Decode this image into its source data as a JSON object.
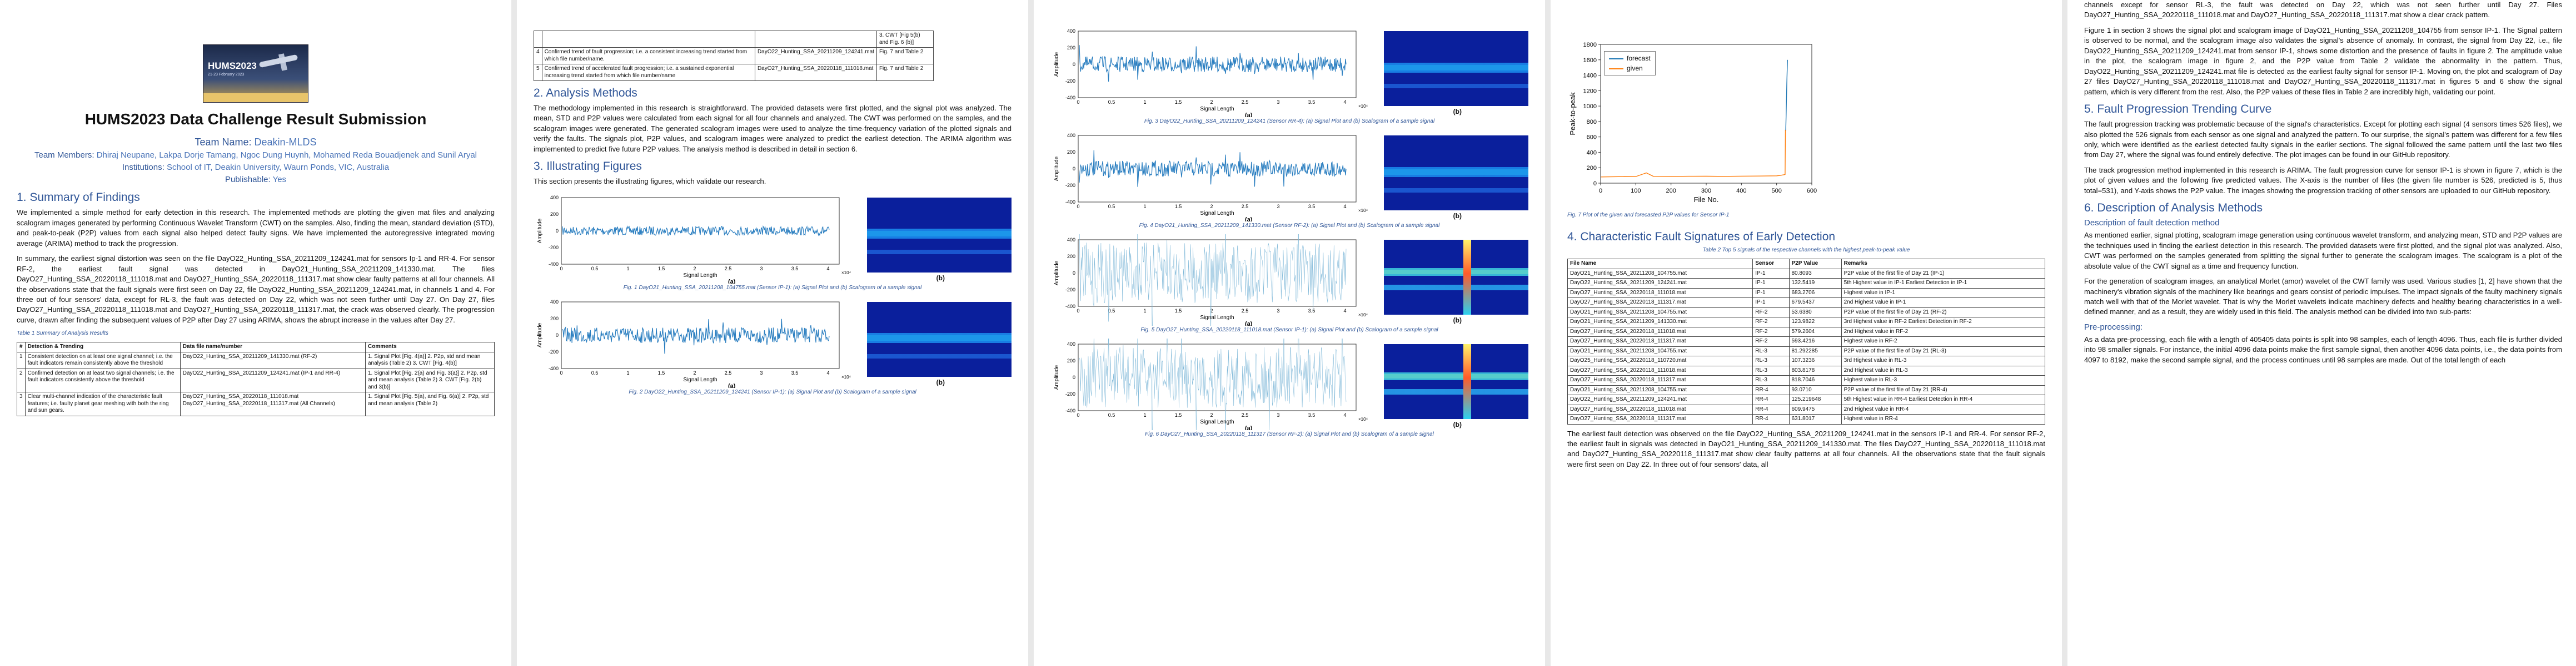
{
  "p1": {
    "logo_title": "HUMS2023",
    "logo_sub": "21-23 February 2023",
    "title": "HUMS2023 Data Challenge Result Submission",
    "team_name_label": "Team Name:",
    "team_name": "Deakin-MLDS",
    "members_label": "Team Members:",
    "members": "Dhiraj Neupane, Lakpa Dorje Tamang, Ngoc Dung Huynh, Mohamed Reda Bouadjenek and Sunil Aryal",
    "inst_label": "Institutions:",
    "inst": "School of IT, Deakin University, Waurn Ponds, VIC, Australia",
    "pub_label": "Publishable:",
    "pub": "Yes",
    "h_summary": "1. Summary of Findings",
    "para1": "We implemented a simple method for early detection in this research. The implemented methods are plotting the given mat files and analyzing scalogram images generated by performing Continuous Wavelet Transform (CWT) on the samples. Also, finding the mean, standard deviation (STD), and peak-to-peak (P2P) values from each signal also helped detect faulty signs. We have implemented the autoregressive integrated moving average (ARIMA) method to track the progression.",
    "para2": "In summary, the earliest signal distortion was seen on the file DayO22_Hunting_SSA_20211209_124241.mat for sensors Ip-1 and RR-4. For sensor RF-2, the earliest fault signal was detected in DayO21_Hunting_SSA_20211209_141330.mat. The files DayO27_Hunting_SSA_20220118_111018.mat and DayO27_Hunting_SSA_20220118_111317.mat show clear faulty patterns at all four channels. All the observations state that the fault signals were first seen on Day 22, file DayO22_Hunting_SSA_20211209_124241.mat, in channels 1 and 4. For three out of four sensors' data, except for RL-3, the fault was detected on Day 22, which was not seen further until Day 27. On Day 27, files DayO27_Hunting_SSA_20220118_111018.mat and DayO27_Hunting_SSA_20220118_111317.mat, the crack was observed clearly. The progression curve, drawn after finding the subsequent values of P2P after Day 27 using ARIMA, shows the abrupt increase in the values after Day 27.",
    "table_caption": "Table 1   Summary of Analysis Results",
    "t1_headers": [
      "#",
      "Detection & Trending",
      "Data file name/number",
      "Comments"
    ],
    "t1_rows": [
      [
        "1",
        "Consistent detection on at least one signal channel; i.e. the fault indicators remain consistently above the threshold",
        "DayO22_Hunting_SSA_20211209_141330.mat (RF-2)",
        "1. Signal Plot [Fig. 4(a)] 2. P2p, std and mean analysis (Table 2) 3. CWT [Fig. 4(b)]"
      ],
      [
        "2",
        "Confirmed detection on at least two signal channels; i.e. the fault indicators consistently above the threshold",
        "DayO22_Hunting_SSA_20211209_124241.mat (IP-1 and RR-4)",
        "1. Signal Plot [Fig. 2(a) and Fig. 3(a)] 2. P2p, std and mean analysis (Table 2) 3. CWT [Fig. 2(b) and 3(b)]"
      ],
      [
        "3",
        "Clear multi-channel indication of the characteristic fault features; i.e. faulty planet gear meshing with both the ring and sun gears.",
        "DayO27_Hunting_SSA_20220118_111018.mat DayO27_Hunting_SSA_20220118_111317.mat (All Channels)",
        "1. Signal Plot [Fig. 5(a), and Fig. 6(a)] 2. P2p, std and mean analysis (Table 2)"
      ]
    ]
  },
  "p2": {
    "t1_cont_rows": [
      [
        "",
        "",
        "",
        "3. CWT [Fig 5(b) and Fig. 6 (b)]"
      ],
      [
        "4",
        "Confirmed trend of fault progression; i.e. a consistent increasing trend started from which file number/name.",
        "DayO22_Hunting_SSA_20211209_124241.mat",
        "Fig. 7 and Table 2"
      ],
      [
        "5",
        "Confirmed trend of accelerated fault progression; i.e. a sustained exponential increasing trend started from which file number/name",
        "DayO27_Hunting_SSA_20220118_111018.mat",
        "Fig. 7 and Table 2"
      ]
    ],
    "h_methods": "2. Analysis Methods",
    "methods_para": "The methodology implemented in this research is straightforward. The provided datasets were first plotted, and the signal plot was analyzed. The mean, STD and P2P values were calculated from each signal for all four channels and analyzed. The CWT was performed on the samples, and the scalogram images were generated. The generated scalogram images were used to analyze the time-frequency variation of the plotted signals and verify the faults. The signals plot, P2P values, and scalogram images were analyzed to predict the earliest detection. The ARIMA algorithm was implemented to predict five future P2P values. The analysis method is described in detail in section 6.",
    "h_figs": "3. Illustrating Figures",
    "figs_para": "This section presents the illustrating figures, which validate our research.",
    "fig1_caption": "Fig. 1 DayO21_Hunting_SSA_20211208_104755.mat (Sensor IP-1): (a) Signal Plot and (b) Scalogram of a sample signal",
    "fig2_caption": "Fig. 2 DayO22_Hunting_SSA_20211209_124241 (Sensor IP-1): (a) Signal Plot and (b) Scalogram of a sample signal"
  },
  "p3": {
    "fig3_caption": "Fig. 3 DayO22_Hunting_SSA_20211209_124241 (Sensor RR-4): (a) Signal Plot and (b) Scalogram of a sample signal",
    "fig4_caption": "Fig. 4 DayO21_Hunting_SSA_20211209_141330.mat (Sensor RF-2): (a) Signal Plot and (b) Scalogram of a sample signal",
    "fig5_caption": "Fig. 5 DayO27_Hunting_SSA_20220118_111018.mat (Sensor IP-1): (a) Signal Plot and (b) Scalogram of a sample signal",
    "fig6_caption": "Fig. 6 DayO27_Hunting_SSA_20220118_111317 (Sensor RF-2): (a) Signal Plot and (b) Scalogram of a sample signal",
    "xlabel": "Signal Length",
    "ylabel": "Amplitude",
    "xticks": [
      "0",
      "0.5",
      "1",
      "1.5",
      "2",
      "2.5",
      "3",
      "3.5",
      "4"
    ],
    "yticks": [
      "400",
      "200",
      "0",
      "-200",
      "-400"
    ],
    "exp": "×10⁴",
    "sub_a": "(a)",
    "sub_b": "(b)"
  },
  "p4": {
    "fig7_caption": "Fig. 7 Plot of the given and forecasted P2P values for Sensor IP-1",
    "h_char": "4. Characteristic Fault Signatures of Early Detection",
    "t2_caption": "Table 2 Top 5 signals of the respective channels with the highest peak-to-peak value",
    "t2_headers": [
      "File Name",
      "Sensor",
      "P2P Value",
      "Remarks"
    ],
    "t2_rows": [
      [
        "DayO21_Hunting_SSA_20211208_104755.mat",
        "IP-1",
        "80.8093",
        "P2P value of the first file of Day 21 (IP-1)"
      ],
      [
        "DayO22_Hunting_SSA_20211209_124241.mat",
        "IP-1",
        "132.5419",
        "5th Highest value in IP-1    Earliest Detection in IP-1"
      ],
      [
        "DayO27_Hunting_SSA_20220118_111018.mat",
        "IP-1",
        "683.2706",
        "Highest value in IP-1"
      ],
      [
        "DayO27_Hunting_SSA_20220118_111317.mat",
        "IP-1",
        "679.5437",
        "2nd Highest value in IP-1"
      ],
      [
        "DayO21_Hunting_SSA_20211208_104755.mat",
        "RF-2",
        "53.6380",
        "P2P value of the first file of Day 21 (RF-2)"
      ],
      [
        "DayO21_Hunting_SSA_20211209_141330.mat",
        "RF-2",
        "123.9822",
        "3rd Highest value in RF-2    Earliest Detection in RF-2"
      ],
      [
        "DayO27_Hunting_SSA_20220118_111018.mat",
        "RF-2",
        "579.2604",
        "2nd Highest value in RF-2"
      ],
      [
        "DayO27_Hunting_SSA_20220118_111317.mat",
        "RF-2",
        "593.4216",
        "Highest value in RF-2"
      ],
      [
        "DayO21_Hunting_SSA_20211208_104755.mat",
        "RL-3",
        "81.292285",
        "P2P value of the first file of Day 21 (RL-3)"
      ],
      [
        "DayO25_Hunting_SSA_20220118_110720.mat",
        "RL-3",
        "107.3236",
        "3rd Highest value in RL-3"
      ],
      [
        "DayO27_Hunting_SSA_20220118_111018.mat",
        "RL-3",
        "803.8178",
        "2nd Highest value in RL-3"
      ],
      [
        "DayO27_Hunting_SSA_20220118_111317.mat",
        "RL-3",
        "818.7046",
        "Highest value in RL-3"
      ],
      [
        "DayO21_Hunting_SSA_20211208_104755.mat",
        "RR-4",
        "93.0710",
        "P2P value of the first file of Day 21 (RR-4)"
      ],
      [
        "DayO22_Hunting_SSA_20211209_124241.mat",
        "RR-4",
        "125.219648",
        "5th Highest value in RR-4    Earliest Detection in RR-4"
      ],
      [
        "DayO27_Hunting_SSA_20220118_111018.mat",
        "RR-4",
        "609.9475",
        "2nd Highest value in RR-4"
      ],
      [
        "DayO27_Hunting_SSA_20220118_111317.mat",
        "RR-4",
        "631.8017",
        "Highest value in RR-4"
      ]
    ],
    "para_after": "The earliest fault detection was observed on the file DayO22_Hunting_SSA_20211209_124241.mat in the sensors IP-1 and RR-4. For sensor RF-2, the earliest fault in signals was detected in DayO21_Hunting_SSA_20211209_141330.mat. The files DayO27_Hunting_SSA_20220118_111018.mat and DayO27_Hunting_SSA_20220118_111317.mat show clear faulty patterns at all four channels. All the observations state that the fault signals were first seen on Day 22. In three out of four sensors' data, all"
  },
  "p5": {
    "para_cont": "channels except for sensor RL-3, the fault was detected on Day 22, which was not seen further until Day 27. Files DayO27_Hunting_SSA_20220118_111018.mat and DayO27_Hunting_SSA_20220118_111317.mat show a clear crack pattern.",
    "para_fig1": "Figure 1 in section 3 shows the signal plot and scalogram image of DayO21_Hunting_SSA_20211208_104755 from sensor IP-1. The Signal pattern is observed to be normal, and the scalogram image also validates the signal's absence of anomaly. In contrast, the signal from Day 22, i.e., file DayO22_Hunting_SSA_20211209_124241.mat from sensor IP-1, shows some distortion and the presence of faults in figure 2. The amplitude value in the plot, the scalogram image in figure 2, and the P2P value from Table 2 validate the abnormality in the pattern. Thus, DayO22_Hunting_SSA_20211209_124241.mat file is detected as the earliest faulty signal for sensor IP-1. Moving on, the plot and scalogram of Day 27 files DayO27_Hunting_SSA_20220118_111018.mat and DayO27_Hunting_SSA_20220118_111317.mat in figures 5 and 6 show the signal pattern, which is very different from the rest. Also, the P2P values of these files in Table 2 are incredibly high, validating our point.",
    "h_trend": "5. Fault Progression Trending Curve",
    "trend_p1": "The fault progression tracking was problematic because of the signal's characteristics. Except for plotting each signal (4 sensors times 526 files), we also plotted the 526 signals from each sensor as one signal and analyzed the pattern. To our surprise, the signal's pattern was different for a few files only, which were identified as the earliest detected faulty signals in the earlier sections. The signal followed the same pattern until the last two files from Day 27, where the signal was found entirely defective. The plot images can be found in our GitHub repository.",
    "trend_p2": "The track progression method implemented in this research is ARIMA. The fault progression curve for sensor IP-1 is shown in figure 7, which is the plot of given values and the following five predicted values. The X-axis is the number of files (the given file number is 526, predicted is 5, thus total=531), and Y-axis shows the P2P value. The images showing the progression tracking of other sensors are uploaded to our GitHub repository.",
    "h_desc": "6. Description of Analysis Methods",
    "h_fault": "Description of fault detection method",
    "desc_p1": "As mentioned earlier, signal plotting, scalogram image generation using continuous wavelet transform, and analyzing mean, STD and P2P values are the techniques used in finding the earliest detection in this research. The provided datasets were first plotted, and the signal plot was analyzed. Also, CWT was performed on the samples generated from splitting the signal further to generate the scalogram images. The scalogram is a plot of the absolute value of the CWT signal as a time and frequency function.",
    "desc_p2": "For the generation of scalogram images, an analytical Morlet (amor) wavelet of the CWT family was used. Various studies [1, 2] have shown that the machinery's vibration signals of the machinery like bearings and gears consist of periodic impulses. The impact signals of the faulty machinery signals match well with that of the Morlet wavelet. That is why the Morlet wavelets indicate machinery defects and healthy bearing characteristics in a well-defined manner, and as a result, they are widely used in this field. The analysis method can be divided into two sub-parts:",
    "h_pre": "Pre-processing:",
    "pre_p": "As a data pre-processing, each file with a length of 405405 data points is split into 98 samples, each of length 4096. Thus, each file is further divided into 98 smaller signals. For instance, the initial 4096 data points make the first sample signal, then another 4096 data points, i.e., the data points from 4097 to 8192, make the second sample signal, and the process continues until 98 samples are made. Out of the total length of each"
  },
  "chart_data": {
    "type": "line",
    "title": "",
    "xlabel": "File No.",
    "ylabel": "Peak-to-peak",
    "xlim": [
      0,
      600
    ],
    "ylim": [
      0,
      1800
    ],
    "xticks": [
      0,
      100,
      200,
      300,
      400,
      500,
      600
    ],
    "yticks": [
      0,
      200,
      400,
      600,
      800,
      1000,
      1200,
      1400,
      1600,
      1800
    ],
    "series": [
      {
        "name": "forecast",
        "color": "#1f77b4",
        "x": [
          526,
          527,
          528,
          529,
          530,
          531
        ],
        "y": [
          680,
          890,
          1090,
          1290,
          1470,
          1600
        ]
      },
      {
        "name": "given",
        "color": "#ff7f0e",
        "x": [
          1,
          50,
          100,
          130,
          150,
          200,
          250,
          300,
          350,
          400,
          450,
          500,
          510,
          520,
          524,
          525,
          526
        ],
        "y": [
          81,
          84,
          86,
          133,
          88,
          87,
          89,
          90,
          88,
          91,
          92,
          95,
          100,
          108,
          113,
          683,
          680
        ]
      }
    ],
    "legend_position": "top-left"
  }
}
